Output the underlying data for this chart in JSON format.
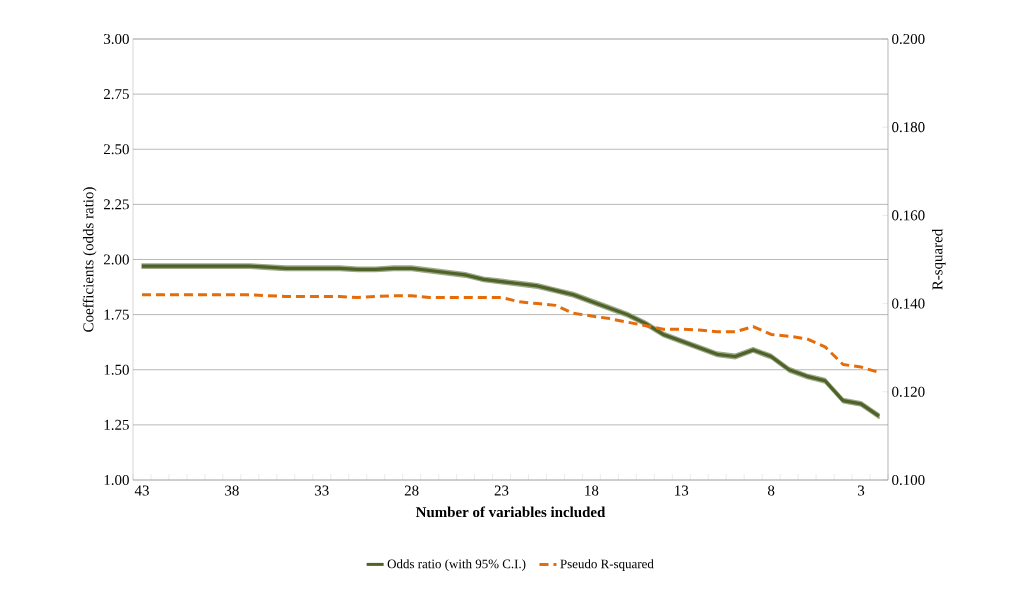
{
  "chart_data": {
    "type": "line",
    "xlabel": "Number of variables included",
    "ylabel": "Coefficients (odds ratio)",
    "y2label": "R-squared",
    "x": [
      43,
      42,
      41,
      40,
      39,
      38,
      37,
      36,
      35,
      34,
      33,
      32,
      31,
      30,
      29,
      28,
      27,
      26,
      25,
      24,
      23,
      22,
      21,
      20,
      19,
      18,
      17,
      16,
      15,
      14,
      13,
      12,
      11,
      10,
      9,
      8,
      7,
      6,
      5,
      4,
      3,
      2
    ],
    "xlim": [
      43.5,
      1.5
    ],
    "xticks": [
      43,
      38,
      33,
      28,
      23,
      18,
      13,
      8,
      3
    ],
    "ylim": [
      1,
      3
    ],
    "yticks": [
      {
        "value": 1,
        "label": "1.00"
      },
      {
        "value": 1.25,
        "label": "1.25"
      },
      {
        "value": 1.5,
        "label": "1.50"
      },
      {
        "value": 1.75,
        "label": "1.75"
      },
      {
        "value": 2,
        "label": "2.00"
      },
      {
        "value": 2.25,
        "label": "2.25"
      },
      {
        "value": 2.5,
        "label": "2.50"
      },
      {
        "value": 2.75,
        "label": "2.75"
      },
      {
        "value": 3,
        "label": "3.00"
      }
    ],
    "y2lim": [
      0.1,
      0.2
    ],
    "y2ticks": [
      {
        "value": 0.1,
        "label": "0.100"
      },
      {
        "value": 0.12,
        "label": "0.120"
      },
      {
        "value": 0.14,
        "label": "0.140"
      },
      {
        "value": 0.16,
        "label": "0.160"
      },
      {
        "value": 0.18,
        "label": "0.180"
      },
      {
        "value": 0.2,
        "label": "0.200"
      }
    ],
    "grid": "y",
    "legend": "bottom",
    "series": [
      {
        "name": "Odds ratio (with 95% C.I.)",
        "color": "#4f6228",
        "line_style": "solid",
        "values": [
          1.97,
          1.97,
          1.97,
          1.97,
          1.97,
          1.97,
          1.97,
          1.965,
          1.96,
          1.96,
          1.96,
          1.96,
          1.955,
          1.955,
          1.96,
          1.96,
          1.95,
          1.94,
          1.93,
          1.91,
          1.9,
          1.89,
          1.88,
          1.86,
          1.84,
          1.81,
          1.78,
          1.75,
          1.71,
          1.66,
          1.63,
          1.6,
          1.57,
          1.56,
          1.59,
          1.56,
          1.5,
          1.47,
          1.45,
          1.36,
          1.345,
          1.29
        ],
        "lower": [
          1.96,
          1.96,
          1.96,
          1.96,
          1.96,
          1.96,
          1.96,
          1.955,
          1.95,
          1.95,
          1.95,
          1.95,
          1.945,
          1.945,
          1.95,
          1.95,
          1.94,
          1.93,
          1.92,
          1.9,
          1.89,
          1.88,
          1.87,
          1.85,
          1.83,
          1.8,
          1.77,
          1.74,
          1.7,
          1.65,
          1.62,
          1.59,
          1.56,
          1.55,
          1.58,
          1.55,
          1.49,
          1.46,
          1.44,
          1.35,
          1.335,
          1.28
        ],
        "upper": [
          1.98,
          1.98,
          1.98,
          1.98,
          1.98,
          1.98,
          1.98,
          1.975,
          1.97,
          1.97,
          1.97,
          1.97,
          1.965,
          1.965,
          1.97,
          1.97,
          1.96,
          1.95,
          1.94,
          1.92,
          1.91,
          1.9,
          1.89,
          1.87,
          1.85,
          1.82,
          1.79,
          1.76,
          1.72,
          1.67,
          1.64,
          1.61,
          1.58,
          1.57,
          1.6,
          1.57,
          1.51,
          1.48,
          1.46,
          1.37,
          1.355,
          1.3
        ]
      },
      {
        "name": "Pseudo R-squared",
        "color": "#e46c0a",
        "line_style": "dashed",
        "axis": "y2",
        "values": [
          0.142,
          0.142,
          0.142,
          0.142,
          0.142,
          0.142,
          0.142,
          0.1418,
          0.1416,
          0.1416,
          0.1416,
          0.1416,
          0.1414,
          0.1416,
          0.1418,
          0.1418,
          0.1414,
          0.1414,
          0.1414,
          0.1414,
          0.1414,
          0.1404,
          0.14,
          0.1396,
          0.1378,
          0.1372,
          0.1366,
          0.1358,
          0.135,
          0.1342,
          0.1342,
          0.134,
          0.1336,
          0.1336,
          0.1348,
          0.133,
          0.1326,
          0.132,
          0.1302,
          0.1262,
          0.1256,
          0.1244
        ]
      }
    ]
  }
}
